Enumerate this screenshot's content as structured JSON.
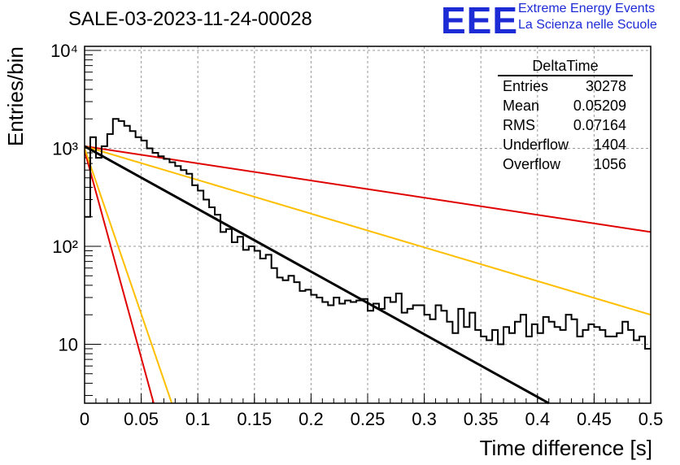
{
  "title": "SALE-03-2023-11-24-00028",
  "logo": {
    "mark": "EEE",
    "line1": "Extreme Energy Events",
    "line2": "La Scienza nelle Scuole"
  },
  "stats": {
    "title": "DeltaTime",
    "rows": [
      {
        "label": "Entries",
        "value": "30278"
      },
      {
        "label": "Mean",
        "value": "0.05209"
      },
      {
        "label": "RMS",
        "value": "0.07164"
      },
      {
        "label": "Underflow",
        "value": "1404"
      },
      {
        "label": "Overflow",
        "value": "1056"
      }
    ]
  },
  "chart_data": {
    "type": "histogram",
    "xlabel": "Time difference [s]",
    "ylabel": "Entries/bin",
    "xlim": [
      0,
      0.5
    ],
    "ylim": [
      2.5,
      11000
    ],
    "yscale": "log",
    "grid": true,
    "x_ticks": [
      "0",
      "0.05",
      "0.1",
      "0.15",
      "0.2",
      "0.25",
      "0.3",
      "0.35",
      "0.4",
      "0.45",
      "0.5"
    ],
    "y_ticks": [
      {
        "value": 10,
        "label": "10"
      },
      {
        "value": 100,
        "label": "10²"
      },
      {
        "value": 1000,
        "label": "10³"
      },
      {
        "value": 10000,
        "label": "10⁴"
      }
    ],
    "bin_width": 0.005,
    "histogram": {
      "color": "#000000",
      "counts": [
        200,
        1300,
        800,
        1050,
        1400,
        2000,
        1900,
        1700,
        1500,
        1300,
        1200,
        1000,
        900,
        830,
        780,
        720,
        660,
        600,
        550,
        420,
        370,
        300,
        250,
        210,
        140,
        150,
        110,
        125,
        92,
        100,
        90,
        75,
        82,
        60,
        48,
        45,
        50,
        43,
        35,
        36,
        32,
        30,
        27,
        25,
        30,
        26,
        28,
        27,
        28,
        29,
        22,
        26,
        23,
        30,
        27,
        33,
        21,
        23,
        25,
        25,
        20,
        18,
        25,
        22,
        17,
        13,
        23,
        15,
        21,
        14,
        12,
        11,
        14,
        10,
        15,
        13,
        17,
        20,
        12,
        16,
        13,
        19,
        17,
        15,
        14,
        20,
        18,
        12,
        14,
        16,
        15,
        14,
        12,
        12,
        13,
        17,
        14,
        11,
        12,
        9
      ]
    },
    "fit_lines": [
      {
        "color": "#e00000",
        "x": [
          0,
          0.5
        ],
        "y": [
          1050,
          140
        ]
      },
      {
        "color": "#ffbf00",
        "x": [
          0,
          0.5
        ],
        "y": [
          1050,
          20
        ]
      },
      {
        "color": "#000000",
        "x": [
          0,
          0.41
        ],
        "y": [
          1050,
          2.5
        ]
      },
      {
        "color": "#e00000",
        "x": [
          0,
          0.061
        ],
        "y": [
          950,
          2.5
        ]
      },
      {
        "color": "#ffbf00",
        "x": [
          0,
          0.077
        ],
        "y": [
          1000,
          2.5
        ]
      }
    ]
  }
}
